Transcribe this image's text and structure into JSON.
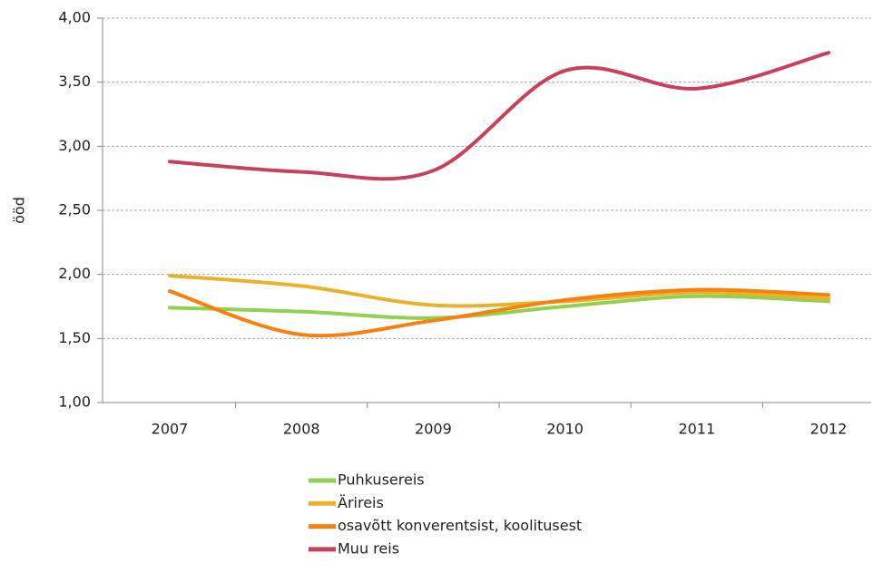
{
  "chart_data": {
    "type": "line",
    "y_label": "ööd",
    "categories": [
      "2007",
      "2008",
      "2009",
      "2010",
      "2011",
      "2012"
    ],
    "series": [
      {
        "name": "Puhkusereis",
        "color": "#92d050",
        "values": [
          1.74,
          1.71,
          1.66,
          1.75,
          1.83,
          1.79
        ]
      },
      {
        "name": "Ärireis",
        "color": "#e8b22a",
        "values": [
          1.99,
          1.91,
          1.76,
          1.79,
          1.86,
          1.81
        ]
      },
      {
        "name": "osavõtt konverentsist, koolitusest",
        "color": "#f7800f",
        "values": [
          1.87,
          1.53,
          1.64,
          1.8,
          1.88,
          1.84
        ]
      },
      {
        "name": "Muu reis",
        "color": "#c9405a",
        "values": [
          2.88,
          2.8,
          2.81,
          3.59,
          3.45,
          3.73
        ]
      }
    ],
    "ylim": [
      1,
      4
    ],
    "yticks": [
      {
        "value": 1,
        "label": "1,00"
      },
      {
        "value": 1.5,
        "label": "1,50"
      },
      {
        "value": 2,
        "label": "2,00"
      },
      {
        "value": 2.5,
        "label": "2,50"
      },
      {
        "value": 3,
        "label": "3,00"
      },
      {
        "value": 3.5,
        "label": "3,50"
      },
      {
        "value": 4,
        "label": "4,00"
      }
    ],
    "grid": true,
    "smooth": true,
    "legend": "bottom"
  }
}
